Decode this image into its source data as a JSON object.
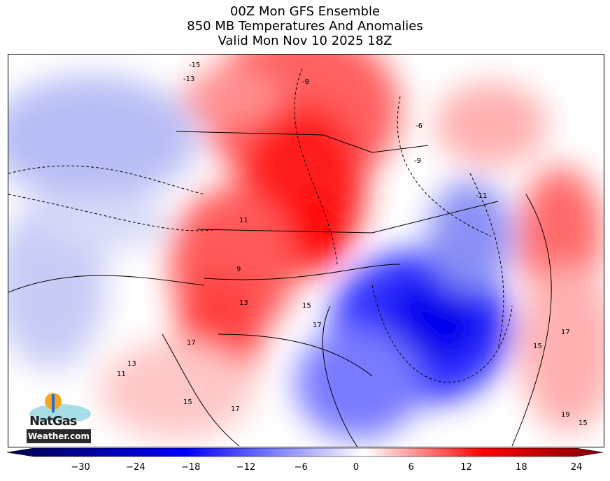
{
  "title": {
    "line1": "00Z Mon GFS Ensemble",
    "line2": "850 MB Temperatures And Anomalies",
    "line3": "Valid Mon Nov 10 2025 18Z"
  },
  "colorbar": {
    "ticks": [
      "−30",
      "−24",
      "−18",
      "−12",
      "−6",
      "0",
      "6",
      "12",
      "18",
      "24"
    ],
    "tick_values": [
      -30,
      -24,
      -18,
      -12,
      -6,
      0,
      6,
      12,
      18,
      24
    ],
    "range": [
      -36,
      24
    ],
    "colormap": "blue-white-red",
    "extend": "both",
    "colors": {
      "min": "#00004c",
      "blue": "#0000ff",
      "zero": "#ffffff",
      "red": "#ff0000",
      "max": "#7f0000"
    }
  },
  "contour_labels": [
    "-15",
    "-13",
    "-9",
    "-6",
    "-9",
    "-11",
    "11",
    "9",
    "13",
    "15",
    "17",
    "17",
    "13",
    "11",
    "15",
    "17",
    "15",
    "17",
    "19",
    "15"
  ],
  "logo": {
    "line1": "NatGas",
    "line2": "Weather.com"
  }
}
